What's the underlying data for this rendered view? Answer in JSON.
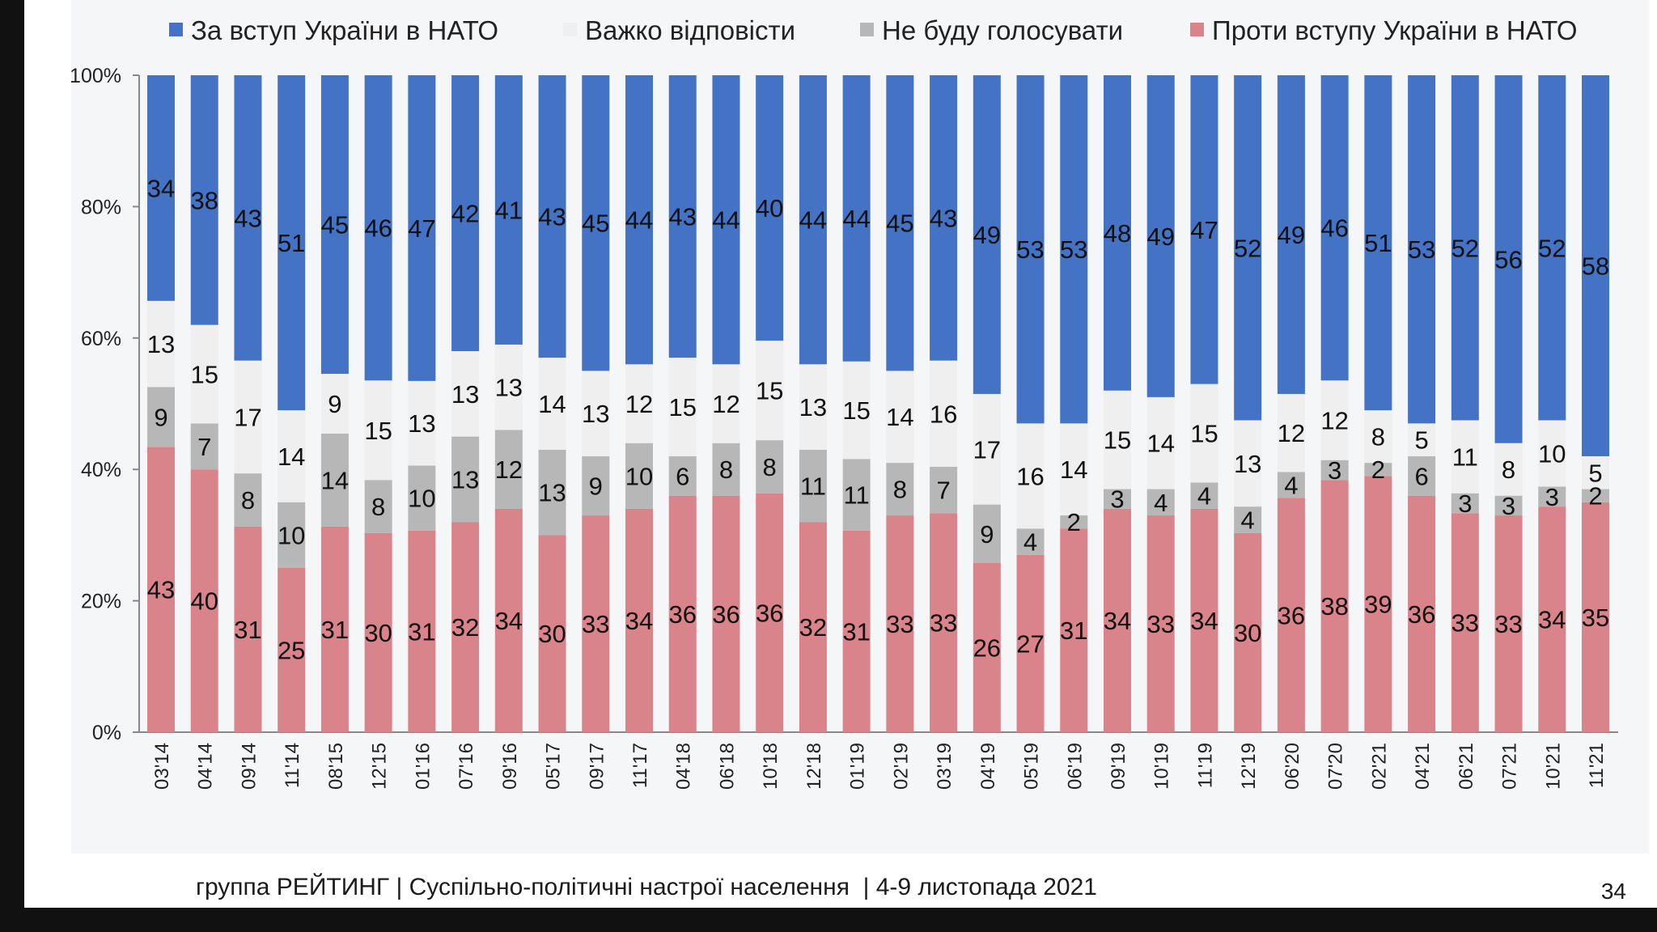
{
  "chart_data": {
    "type": "bar",
    "stacked": true,
    "normalized": true,
    "categories": [
      "03'14",
      "04'14",
      "09'14",
      "11'14",
      "08'15",
      "12'15",
      "01'16",
      "07'16",
      "09'16",
      "05'17",
      "09'17",
      "11'17",
      "04'18",
      "06'18",
      "10'18",
      "12'18",
      "01'19",
      "02'19",
      "03'19",
      "04'19",
      "05'19",
      "06'19",
      "09'19",
      "10'19",
      "11'19",
      "12'19",
      "06'20",
      "07'20",
      "02'21",
      "04'21",
      "06'21",
      "07'21",
      "10'21",
      "11'21"
    ],
    "series": [
      {
        "name": "Проти вступу України в НАТО",
        "color": "#d9848a",
        "values": [
          43,
          40,
          31,
          25,
          31,
          30,
          31,
          32,
          34,
          30,
          33,
          34,
          36,
          36,
          36,
          32,
          31,
          33,
          33,
          26,
          27,
          31,
          34,
          33,
          34,
          30,
          36,
          38,
          39,
          36,
          33,
          33,
          34,
          35
        ]
      },
      {
        "name": "Не буду голосувати",
        "color": "#b7b7b7",
        "values": [
          9,
          7,
          8,
          10,
          14,
          8,
          10,
          13,
          12,
          13,
          9,
          10,
          6,
          8,
          8,
          11,
          11,
          8,
          7,
          9,
          4,
          2,
          3,
          4,
          4,
          4,
          4,
          3,
          2,
          6,
          3,
          3,
          3,
          2
        ]
      },
      {
        "name": "Важко відповісти",
        "color": "#efefef",
        "values": [
          13,
          15,
          17,
          14,
          9,
          15,
          13,
          13,
          13,
          14,
          13,
          12,
          15,
          12,
          15,
          13,
          15,
          14,
          16,
          17,
          16,
          14,
          15,
          14,
          15,
          13,
          12,
          12,
          8,
          5,
          11,
          8,
          10,
          5
        ]
      },
      {
        "name": "За вступ України в НАТО",
        "color": "#4472c4",
        "values": [
          34,
          38,
          43,
          51,
          45,
          46,
          47,
          42,
          41,
          43,
          45,
          44,
          43,
          44,
          40,
          44,
          44,
          45,
          43,
          49,
          53,
          53,
          48,
          49,
          47,
          52,
          49,
          46,
          51,
          53,
          52,
          56,
          52,
          58
        ]
      }
    ],
    "legend_order": [
      3,
      2,
      1,
      0
    ],
    "legend_position": "top",
    "y_ticks": [
      "0%",
      "20%",
      "40%",
      "60%",
      "80%",
      "100%"
    ],
    "ylim": [
      0,
      100
    ],
    "xlabel": "",
    "ylabel": "",
    "title": ""
  },
  "footer": "группа РЕЙТИНГ | Суспільно-політичні настрої населення  | 4-9 листопада 2021",
  "page_number": "34"
}
